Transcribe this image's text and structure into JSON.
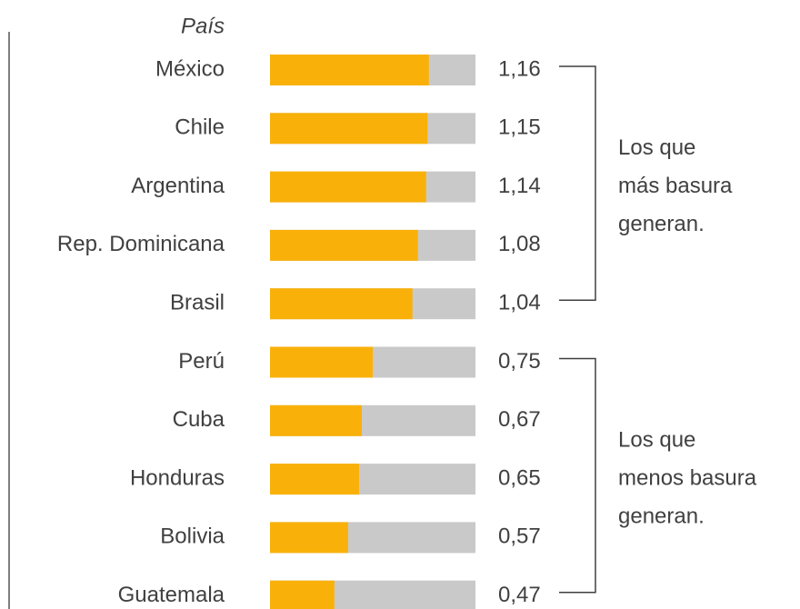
{
  "chart_data": {
    "type": "bar",
    "orientation": "horizontal",
    "y_label": "País",
    "categories": [
      "México",
      "Chile",
      "Argentina",
      "Rep. Dominicana",
      "Brasil",
      "Perú",
      "Cuba",
      "Honduras",
      "Bolivia",
      "Guatemala"
    ],
    "values": [
      1.16,
      1.15,
      1.14,
      1.08,
      1.04,
      0.75,
      0.67,
      0.65,
      0.57,
      0.47
    ],
    "value_labels": [
      "1,16",
      "1,15",
      "1,14",
      "1,08",
      "1,04",
      "0,75",
      "0,67",
      "0,65",
      "0,57",
      "0,47"
    ],
    "color": "#f9b10a",
    "track_color": "#c9c9c9",
    "xlim": [
      0,
      1.5
    ],
    "annotations": [
      {
        "lines": [
          "Los que",
          "más basura",
          "generan."
        ]
      },
      {
        "lines": [
          "Los que",
          "menos basura",
          "generan."
        ]
      }
    ]
  }
}
